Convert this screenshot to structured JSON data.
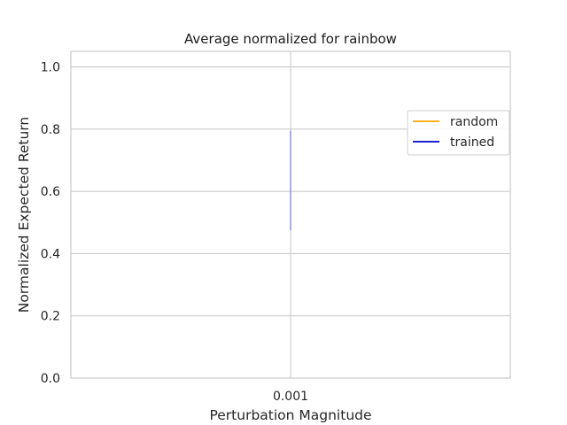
{
  "chart_data": {
    "type": "line",
    "title": "Average normalized for rainbow",
    "xlabel": "Perturbation Magnitude",
    "ylabel": "Normalized Expected Return",
    "categories": [
      "0.001"
    ],
    "ylim": [
      0,
      1.05
    ],
    "yticks": [
      "0.0",
      "0.2",
      "0.4",
      "0.6",
      "0.8",
      "1.0"
    ],
    "grid": true,
    "legend_position": "right",
    "series": [
      {
        "name": "random",
        "color": "#ffa500",
        "values": [
          null
        ],
        "band": null
      },
      {
        "name": "trained",
        "color": "#0000cd",
        "values": [
          0.635
        ],
        "band": [
          0.475,
          0.795
        ]
      }
    ]
  }
}
